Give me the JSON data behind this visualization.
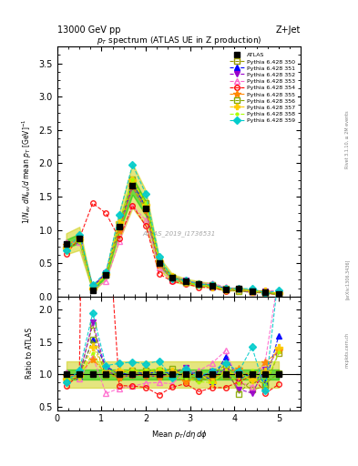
{
  "title_top": "13000 GeV pp",
  "title_right": "Z+Jet",
  "plot_title": "p_{T} spectrum (ATLAS UE in Z production)",
  "xlabel": "Mean p_{T}/d\\eta d\\phi",
  "ylabel_main": "1/N_{ev} dN_{ev}/d mean p_{T} [GeV]^{-1}",
  "ylabel_ratio": "Ratio to ATLAS",
  "watermark": "ATLAS_2019_I1736531",
  "rivet_label": "Rivet 3.1.10, ≥ 2M events",
  "arxiv_label": "[arXiv:1306.3436]",
  "mcplots_label": "mcplots.cern.ch",
  "xlim": [
    0,
    5.5
  ],
  "ylim_main": [
    0,
    3.75
  ],
  "ylim_ratio": [
    0.45,
    2.2
  ],
  "series": [
    {
      "label": "ATLAS",
      "color": "#000000",
      "marker": "s",
      "filled": true,
      "linestyle": "none",
      "is_data": true
    },
    {
      "label": "Pythia 6.428 350",
      "color": "#999900",
      "marker": "s",
      "filled": false,
      "linestyle": "--"
    },
    {
      "label": "Pythia 6.428 351",
      "color": "#0000ff",
      "marker": "^",
      "filled": true,
      "linestyle": "--"
    },
    {
      "label": "Pythia 6.428 352",
      "color": "#9900cc",
      "marker": "v",
      "filled": true,
      "linestyle": "--"
    },
    {
      "label": "Pythia 6.428 353",
      "color": "#ff66cc",
      "marker": "^",
      "filled": false,
      "linestyle": "--"
    },
    {
      "label": "Pythia 6.428 354",
      "color": "#ff0000",
      "marker": "o",
      "filled": false,
      "linestyle": "--"
    },
    {
      "label": "Pythia 6.428 355",
      "color": "#ff8800",
      "marker": "*",
      "filled": true,
      "linestyle": "--"
    },
    {
      "label": "Pythia 6.428 356",
      "color": "#88aa00",
      "marker": "s",
      "filled": false,
      "linestyle": "--"
    },
    {
      "label": "Pythia 6.428 357",
      "color": "#ffcc00",
      "marker": "+",
      "filled": true,
      "linestyle": "--"
    },
    {
      "label": "Pythia 6.428 358",
      "color": "#aaff00",
      "marker": ".",
      "filled": true,
      "linestyle": "--"
    },
    {
      "label": "Pythia 6.428 359",
      "color": "#00cccc",
      "marker": "D",
      "filled": true,
      "linestyle": "--"
    }
  ],
  "band_colors": [
    "#00cc00",
    "#cccc00"
  ],
  "background_color": "#ffffff",
  "axes_color": "#000000"
}
